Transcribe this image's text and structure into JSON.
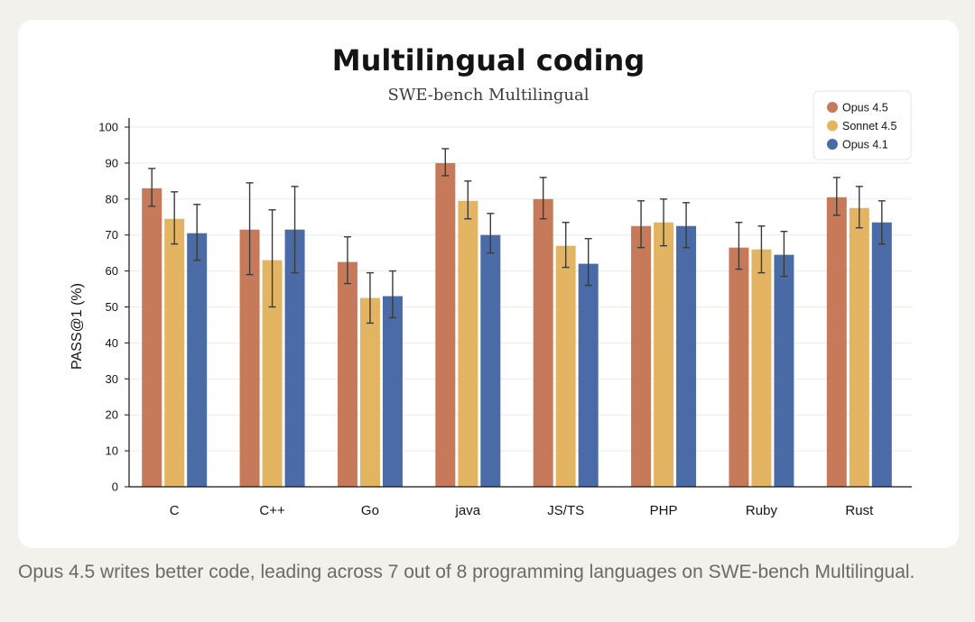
{
  "chart_data": {
    "type": "bar",
    "title": "Multilingual coding",
    "subtitle": "SWE-bench Multilingual",
    "xlabel": "",
    "ylabel": "PASS@1 (%)",
    "ylim": [
      0,
      100
    ],
    "yticks": [
      0,
      10,
      20,
      30,
      40,
      50,
      60,
      70,
      80,
      90,
      100
    ],
    "grid": true,
    "legend_position": "top-right",
    "categories": [
      "C",
      "C++",
      "Go",
      "java",
      "JS/TS",
      "PHP",
      "Ruby",
      "Rust"
    ],
    "series": [
      {
        "name": "Opus 4.5",
        "color": "#c77a5a",
        "values": [
          83,
          71.5,
          62.5,
          90,
          80,
          72.5,
          66.5,
          80.5
        ],
        "err_low": [
          78,
          59,
          56.5,
          86.5,
          74.5,
          66.5,
          60.5,
          75.5
        ],
        "err_high": [
          88.5,
          84.5,
          69.5,
          94,
          86,
          79.5,
          73.5,
          86
        ]
      },
      {
        "name": "Sonnet 4.5",
        "color": "#e3b563",
        "values": [
          74.5,
          63,
          52.5,
          79.5,
          67,
          73.5,
          66,
          77.5
        ],
        "err_low": [
          67.5,
          50,
          45.5,
          74.5,
          61,
          67,
          59.5,
          72
        ],
        "err_high": [
          82,
          77,
          59.5,
          85,
          73.5,
          80,
          72.5,
          83.5
        ]
      },
      {
        "name": "Opus 4.1",
        "color": "#4a6ba5",
        "values": [
          70.5,
          71.5,
          53,
          70,
          62,
          72.5,
          64.5,
          73.5
        ],
        "err_low": [
          63,
          59.5,
          47,
          65,
          56,
          66.5,
          58.5,
          67.5
        ],
        "err_high": [
          78.5,
          83.5,
          60,
          76,
          69,
          79,
          71,
          79.5
        ]
      }
    ]
  },
  "caption": "Opus 4.5 writes better code, leading across 7 out of 8 programming languages on SWE-bench Multilingual."
}
